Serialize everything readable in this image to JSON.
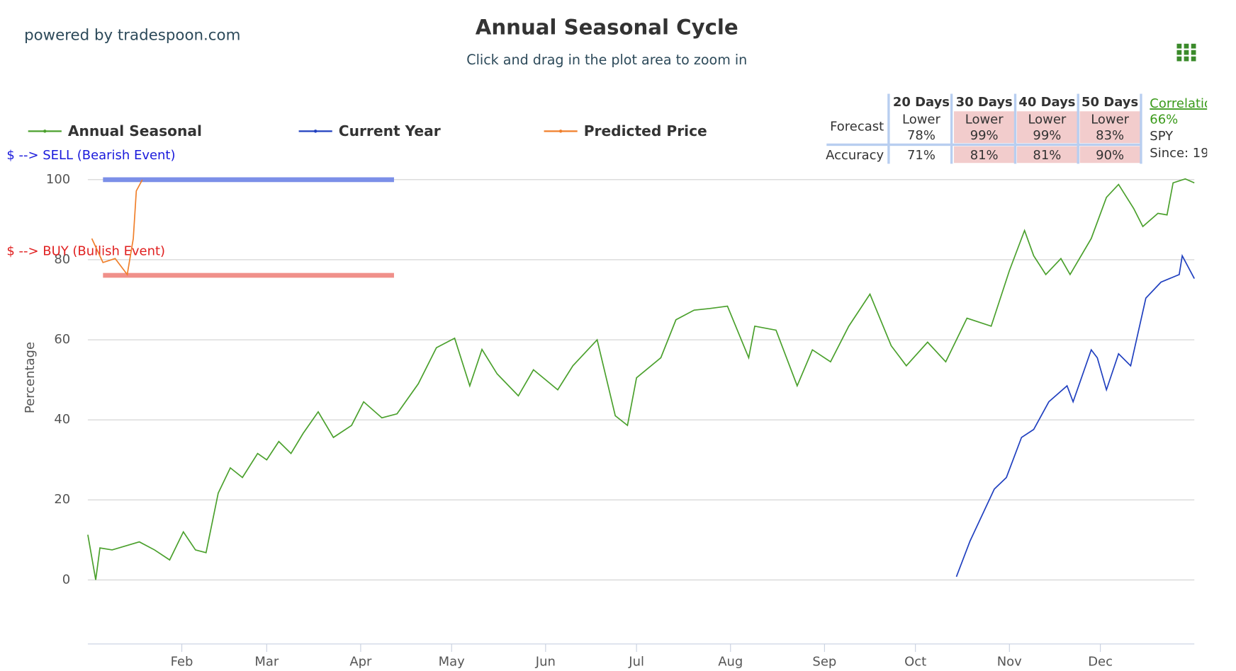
{
  "header": {
    "brand": "powered by tradespoon.com",
    "title": "Annual Seasonal Cycle",
    "subtitle": "Click and drag in the plot area to zoom in"
  },
  "chart_data": {
    "type": "line",
    "y_label": "Percentage",
    "xlim": [
      0,
      365
    ],
    "xticks": [
      {
        "value": 31,
        "label": "Feb"
      },
      {
        "value": 59,
        "label": "Mar"
      },
      {
        "value": 90,
        "label": "Apr"
      },
      {
        "value": 120,
        "label": "May"
      },
      {
        "value": 151,
        "label": "Jun"
      },
      {
        "value": 181,
        "label": "Jul"
      },
      {
        "value": 212,
        "label": "Aug"
      },
      {
        "value": 243,
        "label": "Sep"
      },
      {
        "value": 273,
        "label": "Oct"
      },
      {
        "value": 304,
        "label": "Nov"
      },
      {
        "value": 334,
        "label": "Dec"
      }
    ],
    "ylim": [
      -16,
      100
    ],
    "yticks": [
      0,
      20,
      40,
      60,
      80,
      100
    ],
    "grid": true,
    "series": [
      {
        "name": "Annual Seasonal",
        "color": "#4aa02c",
        "x": [
          0,
          2.6,
          4,
          8,
          17,
          22,
          27,
          31.5,
          35.5,
          39,
          43,
          47,
          51,
          56,
          59,
          63,
          67,
          71,
          76,
          81,
          87,
          91,
          97,
          102,
          109,
          115,
          121,
          126,
          130,
          135,
          142,
          147,
          155,
          160,
          168,
          174,
          178,
          181,
          189,
          194,
          200,
          205,
          211,
          218,
          220,
          227,
          234,
          239,
          245,
          251,
          258,
          265,
          270,
          277,
          283,
          290,
          298,
          304,
          309,
          312,
          316,
          321,
          324,
          331,
          336,
          340,
          345,
          348,
          353,
          356,
          358,
          362,
          365
        ],
        "values": [
          11.3,
          0,
          8,
          7.5,
          9.5,
          7.5,
          5,
          12,
          7.5,
          6.8,
          21.7,
          28,
          25.6,
          31.6,
          30,
          34.6,
          31.6,
          36.6,
          42,
          35.6,
          38.6,
          44.5,
          40.5,
          41.5,
          49,
          58,
          60.4,
          48.5,
          57.6,
          51.5,
          46,
          52.5,
          47.5,
          53.5,
          60,
          41,
          38.6,
          50.5,
          55.5,
          65,
          67.4,
          67.8,
          68.4,
          55.5,
          63.4,
          62.4,
          48.5,
          57.5,
          54.5,
          63.4,
          71.4,
          58.5,
          53.5,
          59.4,
          54.5,
          65.4,
          63.4,
          77.3,
          87.3,
          81,
          76.3,
          80.3,
          76.3,
          85.3,
          95.6,
          98.8,
          92.8,
          88.3,
          91.6,
          91.2,
          99.2,
          100.2,
          99.2
        ]
      },
      {
        "name": "Current Year",
        "color": "#1f3fbf",
        "x": [
          286.5,
          291,
          299,
          303,
          308,
          312,
          317,
          323,
          325,
          331,
          333,
          336,
          340,
          344,
          349,
          354,
          360,
          361,
          365
        ],
        "values": [
          0.8,
          9.7,
          22.7,
          25.6,
          35.6,
          37.6,
          44.5,
          48.5,
          44.5,
          57.5,
          55.5,
          47.5,
          56.5,
          53.5,
          70.4,
          74.4,
          76.3,
          81,
          75.3
        ]
      },
      {
        "name": "Predicted Price",
        "color": "#f07f2a",
        "x": [
          1.3,
          5,
          9,
          13,
          15,
          16,
          18
        ],
        "values": [
          85.3,
          79.3,
          80.3,
          76.3,
          85.3,
          97.2,
          100
        ]
      }
    ],
    "annotations": [
      {
        "text": "$ --> SELL (Bearish Event)",
        "value": 100,
        "color": "#1a1adc",
        "band_color": "#7b8fe8",
        "x": [
          5,
          101
        ]
      },
      {
        "text": "$ --> BUY (Bullish Event)",
        "value": 76.1,
        "color": "#e02020",
        "band_color": "#f0908a",
        "x": [
          5,
          101
        ]
      }
    ]
  },
  "table": {
    "headers": [
      "20 Days",
      "30 Days",
      "40 Days",
      "50 Days"
    ],
    "highlight": [
      false,
      true,
      true,
      true
    ],
    "forecast": {
      "label": "Forecast",
      "cells": [
        [
          "Lower",
          "78%"
        ],
        [
          "Lower",
          "99%"
        ],
        [
          "Lower",
          "99%"
        ],
        [
          "Lower",
          "83%"
        ]
      ]
    },
    "accuracy": {
      "label": "Accuracy",
      "cells": [
        "71%",
        "81%",
        "81%",
        "90%"
      ]
    },
    "side": {
      "correlation": "Correlation",
      "value": "66%",
      "symbol": "SPY",
      "since": "Since: 19"
    }
  }
}
